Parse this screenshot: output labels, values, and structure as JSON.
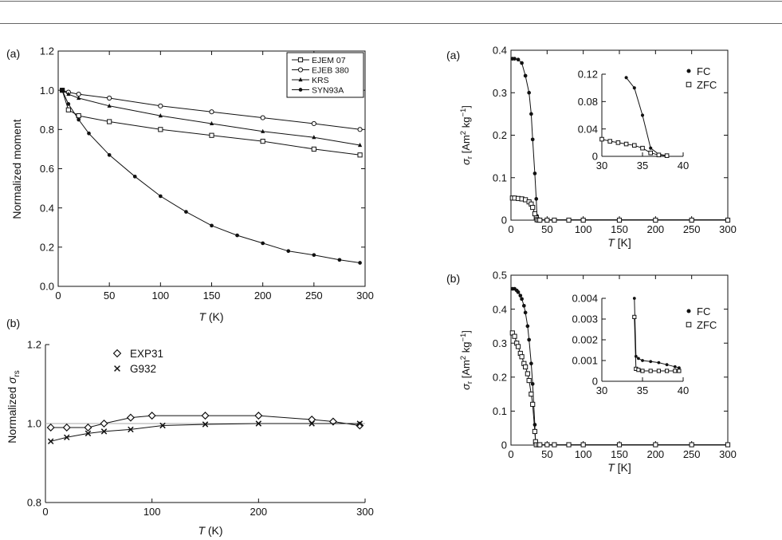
{
  "chart_data": [
    {
      "id": "left-a",
      "type": "line",
      "panel_label": "(a)",
      "xlabel_italic": "T",
      "xlabel_unit": " (K)",
      "ylabel": "Normalized moment",
      "xlim": [
        0,
        300
      ],
      "ylim": [
        0,
        1.2
      ],
      "x_ticks": [
        "0",
        "50",
        "100",
        "150",
        "200",
        "250",
        "300"
      ],
      "y_ticks": [
        "0.0",
        "0.2",
        "0.4",
        "0.6",
        "0.8",
        "1.0",
        "1.2"
      ],
      "legend_position": "top-right",
      "series": [
        {
          "name": "EJEM 07",
          "marker": "open-square",
          "x": [
            4,
            10,
            20,
            50,
            100,
            150,
            200,
            250,
            295
          ],
          "y": [
            1.0,
            0.9,
            0.87,
            0.84,
            0.8,
            0.77,
            0.74,
            0.7,
            0.67
          ]
        },
        {
          "name": "EJEB 380",
          "marker": "open-circle-dot",
          "x": [
            4,
            10,
            20,
            50,
            100,
            150,
            200,
            250,
            295
          ],
          "y": [
            1.0,
            0.99,
            0.98,
            0.96,
            0.92,
            0.89,
            0.86,
            0.83,
            0.8
          ]
        },
        {
          "name": "KRS",
          "marker": "filled-triangle",
          "x": [
            4,
            10,
            20,
            50,
            100,
            150,
            200,
            250,
            295
          ],
          "y": [
            1.0,
            0.98,
            0.96,
            0.92,
            0.87,
            0.83,
            0.79,
            0.76,
            0.72
          ]
        },
        {
          "name": "SYN93A",
          "marker": "filled-circle",
          "x": [
            4,
            10,
            20,
            30,
            50,
            75,
            100,
            125,
            150,
            175,
            200,
            225,
            250,
            275,
            295
          ],
          "y": [
            1.0,
            0.93,
            0.85,
            0.78,
            0.67,
            0.56,
            0.46,
            0.38,
            0.31,
            0.26,
            0.22,
            0.18,
            0.16,
            0.135,
            0.12
          ]
        }
      ]
    },
    {
      "id": "left-b",
      "type": "line",
      "panel_label": "(b)",
      "xlabel_italic": "T",
      "xlabel_unit": " (K)",
      "ylabel_main": "Normalized ",
      "ylabel_sym": "σ",
      "ylabel_sub": "rs",
      "xlim": [
        0,
        300
      ],
      "ylim": [
        0.8,
        1.2
      ],
      "x_ticks": [
        "0",
        "100",
        "200",
        "300"
      ],
      "y_ticks": [
        "0.8",
        "1.0",
        "1.2"
      ],
      "legend_position": "top-left",
      "series": [
        {
          "name": "EXP31",
          "marker": "open-diamond",
          "x": [
            5,
            20,
            40,
            55,
            80,
            100,
            150,
            200,
            250,
            270,
            295
          ],
          "y": [
            0.99,
            0.99,
            0.99,
            1.0,
            1.015,
            1.02,
            1.02,
            1.02,
            1.01,
            1.005,
            0.995
          ]
        },
        {
          "name": "G932",
          "marker": "cross",
          "x": [
            5,
            20,
            40,
            55,
            80,
            110,
            150,
            200,
            250,
            295
          ],
          "y": [
            0.955,
            0.965,
            0.975,
            0.98,
            0.985,
            0.995,
            0.998,
            1.0,
            1.0,
            1.0
          ]
        }
      ]
    },
    {
      "id": "right-a",
      "type": "line",
      "panel_label": "(a)",
      "xlabel_italic": "T",
      "xlabel_unit": " [K]",
      "ylabel_sym": "σ",
      "ylabel_sub": "r",
      "ylabel_unit": " [Am",
      "ylabel_sup1": "2",
      "ylabel_mid": " kg",
      "ylabel_sup2": "−1",
      "ylabel_end": "]",
      "xlim": [
        0,
        300
      ],
      "ylim": [
        0,
        0.4
      ],
      "x_ticks": [
        "0",
        "50",
        "100",
        "150",
        "200",
        "250",
        "300"
      ],
      "y_ticks": [
        "0",
        "0.1",
        "0.2",
        "0.3",
        "0.4"
      ],
      "legend_position": "inset top-right",
      "series": [
        {
          "name": "FC",
          "marker": "filled-circle",
          "x": [
            2,
            5,
            10,
            15,
            20,
            25,
            28,
            30,
            33,
            35,
            36,
            38,
            40,
            50,
            60,
            80,
            100,
            150,
            200,
            250,
            300
          ],
          "y": [
            0.38,
            0.38,
            0.378,
            0.37,
            0.34,
            0.3,
            0.25,
            0.19,
            0.11,
            0.05,
            0.01,
            0.002,
            0.001,
            0.001,
            0.001,
            0.001,
            0.001,
            0.001,
            0.001,
            0.001,
            0.001
          ]
        },
        {
          "name": "ZFC",
          "marker": "open-square",
          "x": [
            2,
            5,
            10,
            15,
            20,
            25,
            28,
            30,
            33,
            35,
            36,
            38,
            40,
            50,
            60,
            80,
            100,
            150,
            200,
            250,
            300
          ],
          "y": [
            0.052,
            0.052,
            0.051,
            0.05,
            0.048,
            0.043,
            0.038,
            0.03,
            0.015,
            0.005,
            0.001,
            0.0,
            0.0,
            0.0,
            0.0,
            0.0,
            0.0,
            0.0,
            0.0,
            0.0,
            0.0
          ]
        }
      ],
      "inset": {
        "xlim": [
          30,
          40
        ],
        "ylim": [
          0,
          0.12
        ],
        "x_ticks": [
          "30",
          "35",
          "40"
        ],
        "y_ticks": [
          "0",
          "0.04",
          "0.08",
          "0.12"
        ],
        "series": [
          {
            "name": "FC",
            "marker": "filled-circle",
            "x": [
              33,
              34,
              35,
              36,
              37,
              38
            ],
            "y": [
              0.115,
              0.1,
              0.06,
              0.012,
              0.003,
              0.001
            ]
          },
          {
            "name": "ZFC",
            "marker": "open-square",
            "x": [
              30,
              31,
              32,
              33,
              34,
              35,
              36,
              37,
              38
            ],
            "y": [
              0.025,
              0.022,
              0.02,
              0.018,
              0.016,
              0.012,
              0.005,
              0.002,
              0.001
            ]
          }
        ]
      }
    },
    {
      "id": "right-b",
      "type": "line",
      "panel_label": "(b)",
      "xlabel_italic": "T",
      "xlabel_unit": " [K]",
      "ylabel_sym": "σ",
      "ylabel_sub": "r",
      "ylabel_unit": " [Am",
      "ylabel_sup1": "2",
      "ylabel_mid": " kg",
      "ylabel_sup2": "−1",
      "ylabel_end": "]",
      "xlim": [
        0,
        300
      ],
      "ylim": [
        0,
        0.5
      ],
      "x_ticks": [
        "0",
        "50",
        "100",
        "150",
        "200",
        "250",
        "300"
      ],
      "y_ticks": [
        "0",
        "0.1",
        "0.2",
        "0.3",
        "0.4",
        "0.5"
      ],
      "legend_position": "inset top-right",
      "series": [
        {
          "name": "FC",
          "marker": "filled-circle",
          "x": [
            2,
            5,
            8,
            10,
            13,
            15,
            18,
            20,
            23,
            25,
            28,
            30,
            33,
            34,
            35,
            38,
            40,
            50,
            60,
            80,
            100,
            150,
            200,
            250,
            300
          ],
          "y": [
            0.46,
            0.46,
            0.455,
            0.45,
            0.44,
            0.43,
            0.41,
            0.39,
            0.35,
            0.31,
            0.24,
            0.18,
            0.06,
            0.01,
            0.001,
            0.001,
            0.001,
            0.001,
            0.001,
            0.001,
            0.001,
            0.001,
            0.001,
            0.001,
            0.001
          ]
        },
        {
          "name": "ZFC",
          "marker": "open-square",
          "x": [
            2,
            5,
            8,
            10,
            13,
            15,
            18,
            20,
            23,
            25,
            28,
            30,
            33,
            34,
            35,
            38,
            40,
            50,
            60,
            80,
            100,
            150,
            200,
            250,
            300
          ],
          "y": [
            0.33,
            0.32,
            0.3,
            0.29,
            0.27,
            0.26,
            0.24,
            0.23,
            0.21,
            0.19,
            0.15,
            0.12,
            0.04,
            0.01,
            0.001,
            0.001,
            0.001,
            0.001,
            0.001,
            0.001,
            0.001,
            0.001,
            0.001,
            0.001,
            0.001
          ]
        }
      ],
      "inset": {
        "xlim": [
          30,
          40
        ],
        "ylim": [
          0,
          0.004
        ],
        "x_ticks": [
          "30",
          "35",
          "40"
        ],
        "y_ticks": [
          "0",
          "0.001",
          "0.002",
          "0.003",
          "0.004"
        ],
        "series": [
          {
            "name": "FC",
            "marker": "filled-circle",
            "x": [
              34.0,
              34.2,
              34.5,
              35,
              36,
              37,
              38,
              39,
              39.5
            ],
            "y": [
              0.004,
              0.0012,
              0.0011,
              0.001,
              0.00095,
              0.0009,
              0.0008,
              0.0007,
              0.00065
            ]
          },
          {
            "name": "ZFC",
            "marker": "open-square",
            "x": [
              34.0,
              34.2,
              34.5,
              35,
              36,
              37,
              38,
              39,
              39.5
            ],
            "y": [
              0.0031,
              0.0006,
              0.00055,
              0.0005,
              0.0005,
              0.0005,
              0.0005,
              0.0005,
              0.0005
            ]
          }
        ]
      }
    }
  ]
}
